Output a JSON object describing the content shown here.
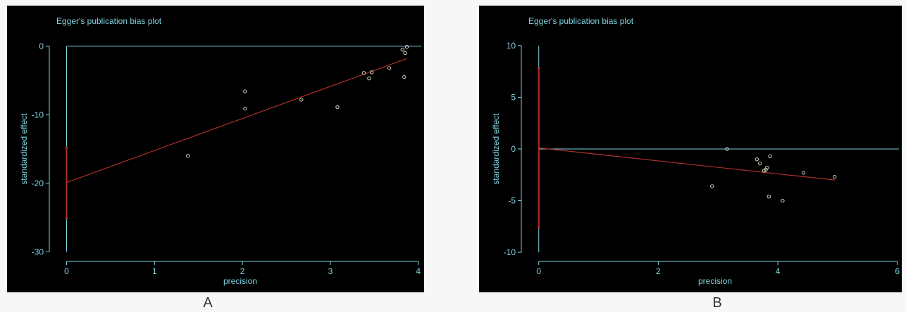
{
  "chart_data": [
    {
      "type": "scatter",
      "panel_label": "A",
      "title": "Egger's publication bias plot",
      "xlabel": "precision",
      "ylabel": "standardized effect",
      "xlim": [
        -0.1,
        4.05
      ],
      "ylim": [
        -31,
        1
      ],
      "xticks": [
        0,
        1,
        2,
        3,
        4
      ],
      "yticks": [
        0,
        -10,
        -20,
        -30
      ],
      "points": [
        {
          "x": 1.38,
          "y": -16.0
        },
        {
          "x": 2.03,
          "y": -6.6
        },
        {
          "x": 2.03,
          "y": -9.1
        },
        {
          "x": 2.67,
          "y": -7.8
        },
        {
          "x": 3.08,
          "y": -8.9
        },
        {
          "x": 3.38,
          "y": -3.9
        },
        {
          "x": 3.44,
          "y": -4.7
        },
        {
          "x": 3.47,
          "y": -3.8
        },
        {
          "x": 3.67,
          "y": -3.2
        },
        {
          "x": 3.82,
          "y": -0.5
        },
        {
          "x": 3.84,
          "y": -4.5
        },
        {
          "x": 3.85,
          "y": -1.0
        },
        {
          "x": 3.87,
          "y": -0.1
        }
      ],
      "regression_line": {
        "x": [
          0,
          3.87
        ],
        "y": [
          -19.9,
          -1.8
        ]
      },
      "intercept_ci": {
        "x": 0,
        "low": -25.1,
        "high": -14.8
      },
      "reference_line_y": 0,
      "reference_line_x": 0
    },
    {
      "type": "scatter",
      "panel_label": "B",
      "title": "Egger's publication bias plot",
      "xlabel": "precision",
      "ylabel": "standardized effect",
      "xlim": [
        -0.15,
        6.05
      ],
      "ylim": [
        -10.6,
        10.6
      ],
      "xticks": [
        0,
        2,
        4,
        6
      ],
      "yticks": [
        10,
        5,
        0,
        -5,
        -10
      ],
      "points": [
        {
          "x": 2.9,
          "y": -3.6
        },
        {
          "x": 3.15,
          "y": 0.0
        },
        {
          "x": 3.65,
          "y": -1.0
        },
        {
          "x": 3.7,
          "y": -1.4
        },
        {
          "x": 3.77,
          "y": -2.1
        },
        {
          "x": 3.8,
          "y": -2.0
        },
        {
          "x": 3.82,
          "y": -1.8
        },
        {
          "x": 3.85,
          "y": -4.6
        },
        {
          "x": 3.87,
          "y": -0.7
        },
        {
          "x": 4.08,
          "y": -5.0
        },
        {
          "x": 4.43,
          "y": -2.3
        },
        {
          "x": 4.95,
          "y": -2.7
        }
      ],
      "regression_line": {
        "x": [
          0,
          4.95
        ],
        "y": [
          0.1,
          -3.0
        ]
      },
      "intercept_ci": {
        "x": 0,
        "low": -7.6,
        "high": 7.8
      },
      "reference_line_y": 0,
      "reference_line_x": 0
    }
  ],
  "colors": {
    "background": "#000000",
    "axis": "#7fd3e0",
    "text": "#7fd3e0",
    "regression": "#b0302a",
    "point": "#d6d6c0"
  }
}
